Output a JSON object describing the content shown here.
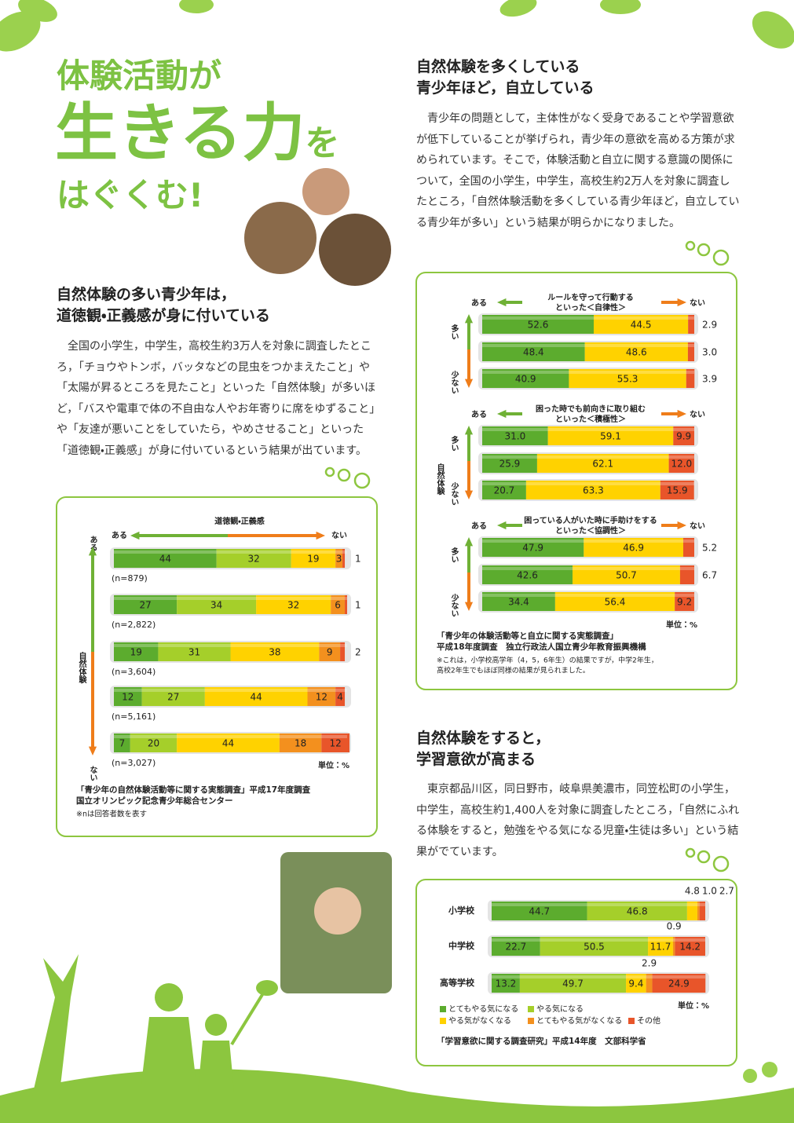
{
  "header": {
    "title_line1": "体験活動が",
    "title_main": "生きる力",
    "title_suffix": "を",
    "title_line3": "はぐくむ!"
  },
  "sections": [
    {
      "heading": [
        "自然体験の多い青少年は，",
        "道徳観・正義感が身に付いている"
      ],
      "body": "全国の小学生，中学生，高校生約3万人を対象に調査したところ，「チョウやトンボ，バッタなどの昆虫をつかまえたこと」や「太陽が昇るところを見たこと」といった「自然体験」が多いほど，「バスや電車で体の不自由な人やお年寄りに席をゆずること」や「友達が悪いことをしていたら，やめさせること」といった「道徳観・正義感」が身に付いているという結果が出ています。"
    },
    {
      "heading": [
        "自然体験を多くしている",
        "青少年ほど，自立している"
      ],
      "body": "青少年の問題として，主体性がなく受身であることや学習意欲が低下していることが挙げられ，青少年の意欲を高める方策が求められています。そこで，体験活動と自立に関する意識の関係について，全国の小学生，中学生，高校生約2万人を対象に調査したところ，「自然体験活動を多くしている青少年ほど，自立している青少年が多い」という結果が明らかになりました。"
    },
    {
      "heading": [
        "自然体験をすると，",
        "学習意欲が高まる"
      ],
      "body": "東京都品川区，同日野市，岐阜県美濃市，同笠松町の小学生，中学生，高校生約1,400人を対象に調査したところ，「自然にふれる体験をすると，勉強をやる気になる児童・生徒は多い」という結果がでています。"
    }
  ],
  "chart_data": [
    {
      "type": "bar",
      "orientation": "horizontal",
      "stacked": true,
      "title": "道徳観・正義感",
      "left_label": "ある",
      "right_label": "ない",
      "axis_top_label": "ある",
      "axis_label": "自然体験",
      "axis_bottom_label": "ない",
      "categories": [
        "(n=879)",
        "(n=2,822)",
        "(n=3,604)",
        "(n=5,161)",
        "(n=3,027)"
      ],
      "series": [
        {
          "color": "#5cac2e",
          "values": [
            44,
            27,
            19,
            12,
            7
          ]
        },
        {
          "color": "#a5cf2a",
          "values": [
            32,
            34,
            31,
            27,
            20
          ]
        },
        {
          "color": "#ffd200",
          "values": [
            19,
            32,
            38,
            44,
            44
          ]
        },
        {
          "color": "#f3901e",
          "values": [
            3,
            6,
            9,
            12,
            18
          ]
        },
        {
          "color": "#e8552a",
          "values": [
            1,
            1,
            2,
            4,
            12
          ]
        }
      ],
      "xlim": [
        0,
        100
      ],
      "unit": "単位：%",
      "source": [
        "「青少年の自然体験活動等に関する実態調査」平成17年度調査",
        "国立オリンピック記念青少年総合センター"
      ],
      "note": "※nは回答者数を表す"
    },
    {
      "type": "bar",
      "orientation": "horizontal",
      "stacked": true,
      "title": [
        "ルールを守って行動する",
        "といった＜自律性＞"
      ],
      "left_label": "ある",
      "right_label": "ない",
      "axis_top_label": "多い",
      "axis_bottom_label": "少ない",
      "series": [
        {
          "color": "#5cac2e",
          "values": [
            52.6,
            48.4,
            40.9
          ]
        },
        {
          "color": "#ffd200",
          "values": [
            44.5,
            48.6,
            55.3
          ]
        },
        {
          "color": "#e8552a",
          "values": [
            2.9,
            3.0,
            3.9
          ],
          "value_labels": [
            "2.9",
            "3.0",
            "3.9"
          ]
        }
      ],
      "xlim": [
        0,
        100
      ]
    },
    {
      "type": "bar",
      "orientation": "horizontal",
      "stacked": true,
      "title": [
        "困った時でも前向きに取り組む",
        "といった＜積極性＞"
      ],
      "left_label": "ある",
      "right_label": "ない",
      "axis_top_label": "多い",
      "axis_bottom_label": "少ない",
      "axis_label": "自然体験",
      "series": [
        {
          "color": "#5cac2e",
          "values": [
            31.0,
            25.9,
            20.7
          ],
          "value_labels": [
            "31.0",
            "25.9",
            "20.7"
          ]
        },
        {
          "color": "#ffd200",
          "values": [
            59.1,
            62.1,
            63.3
          ]
        },
        {
          "color": "#e8552a",
          "values": [
            9.9,
            12.0,
            15.9
          ],
          "value_labels": [
            "9.9",
            "12.0",
            "15.9"
          ]
        }
      ],
      "xlim": [
        0,
        100
      ]
    },
    {
      "type": "bar",
      "orientation": "horizontal",
      "stacked": true,
      "title": [
        "困っている人がいた時に手助けをする",
        "といった＜協調性＞"
      ],
      "left_label": "ある",
      "right_label": "ない",
      "axis_top_label": "多い",
      "axis_bottom_label": "少ない",
      "series": [
        {
          "color": "#5cac2e",
          "values": [
            47.9,
            42.6,
            34.4
          ]
        },
        {
          "color": "#ffd200",
          "values": [
            46.9,
            50.7,
            56.4
          ]
        },
        {
          "color": "#e8552a",
          "values": [
            5.2,
            6.7,
            9.2
          ]
        }
      ],
      "xlim": [
        0,
        100
      ],
      "unit": "単位：%",
      "source": [
        "「青少年の体験活動等と自立に関する実態調査」",
        "平成18年度調査　独立行政法人国立青少年教育振興機構"
      ],
      "note": [
        "※これは，小学校高学年（4，5，6年生）の結果ですが，中学2年生，",
        "高校2年生でもほぼ同様の結果が見られました。"
      ]
    },
    {
      "type": "bar",
      "orientation": "horizontal",
      "stacked": true,
      "categories": [
        "小学校",
        "中学校",
        "高等学校"
      ],
      "series": [
        {
          "name": "とてもやる気になる",
          "color": "#5cac2e",
          "values": [
            44.7,
            22.7,
            13.2
          ]
        },
        {
          "name": "やる気になる",
          "color": "#a5cf2a",
          "values": [
            46.8,
            50.5,
            49.7
          ]
        },
        {
          "name": "やる気がなくなる",
          "color": "#ffd200",
          "values": [
            4.8,
            11.7,
            9.4
          ]
        },
        {
          "name": "とてもやる気がなくなる",
          "color": "#f3901e",
          "values": [
            1.0,
            0.9,
            2.9
          ],
          "value_labels": [
            "1.0",
            "0.9",
            "2.9"
          ]
        },
        {
          "name": "その他",
          "color": "#e8552a",
          "values": [
            2.7,
            14.2,
            24.9
          ]
        }
      ],
      "xlim": [
        0,
        100
      ],
      "unit": "単位：%",
      "source": "「学習意欲に関する調査研究」平成14年度　文部科学省"
    }
  ]
}
